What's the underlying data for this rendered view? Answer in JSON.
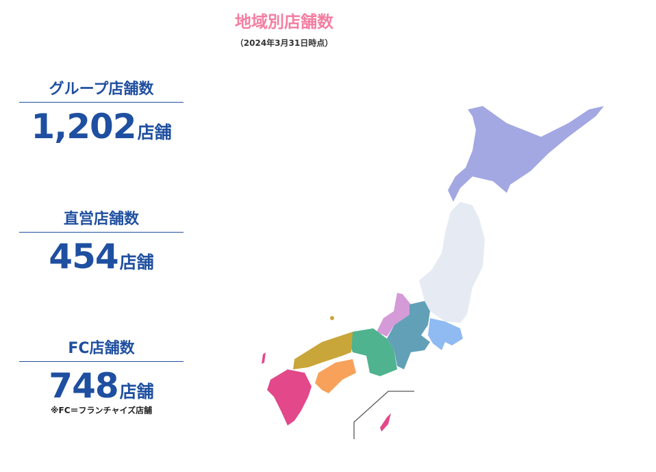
{
  "header": {
    "title": "地域別店舗数",
    "as_of": "（2024年3月31日時点）"
  },
  "stats": [
    {
      "label": "グループ店舗数",
      "value": "1,202",
      "unit": "店舗"
    },
    {
      "label": "直営店舗数",
      "value": "454",
      "unit": "店舗"
    },
    {
      "label": "FC店舗数",
      "value": "748",
      "unit": "店舗",
      "note": "※FC＝フランチャイズ店舗"
    }
  ],
  "map": {
    "region_colors": {
      "hokkaido": "#a3a8e2",
      "tohoku": "#e6ebf3",
      "kanto": "#8fbaf2",
      "hokuriku": "#d49bd8",
      "chubu": "#62a0b8",
      "kinki": "#4fb38f",
      "chugoku": "#c9a63a",
      "shikoku": "#f7a15a",
      "kyushu_okinawa": "#e2488a"
    }
  }
}
